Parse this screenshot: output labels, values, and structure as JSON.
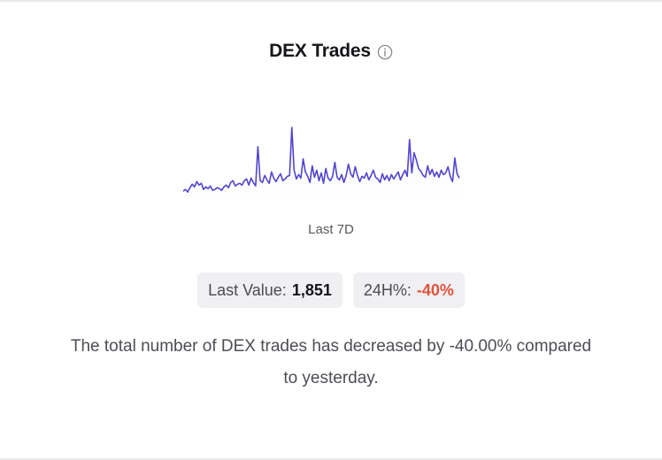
{
  "card": {
    "title": "DEX Trades",
    "info_icon": "info-circle-icon",
    "period_label": "Last 7D",
    "last_value_label": "Last Value:",
    "last_value": "1,851",
    "change_label": "24H%:",
    "change_value": "-40%",
    "description": "The total number of DEX trades has decreased by -40.00% compared to yesterday."
  },
  "colors": {
    "line": "#5145cd",
    "area_top": "#e6e3fb",
    "negative": "#e0533d"
  },
  "chart_data": {
    "type": "line",
    "title": "",
    "xlabel": "",
    "ylabel": "",
    "series": [
      {
        "values": [
          12,
          14,
          11,
          16,
          20,
          17,
          23,
          19,
          21,
          14,
          17,
          15,
          18,
          13,
          14,
          16,
          15,
          13,
          17,
          19,
          16,
          22,
          24,
          18,
          20,
          21,
          19,
          24,
          26,
          19,
          27,
          22,
          18,
          63,
          24,
          22,
          30,
          25,
          21,
          34,
          27,
          23,
          28,
          32,
          24,
          26,
          29,
          30,
          85,
          36,
          26,
          31,
          27,
          49,
          34,
          29,
          22,
          41,
          28,
          36,
          24,
          33,
          21,
          38,
          27,
          24,
          29,
          45,
          28,
          25,
          31,
          22,
          30,
          43,
          32,
          28,
          40,
          30,
          23,
          29,
          27,
          33,
          25,
          30,
          36,
          28,
          26,
          22,
          32,
          25,
          30,
          24,
          31,
          26,
          30,
          34,
          25,
          31,
          36,
          29,
          71,
          33,
          56,
          48,
          38,
          35,
          30,
          28,
          41,
          31,
          37,
          29,
          34,
          28,
          36,
          31,
          33,
          40,
          29,
          23,
          50,
          32,
          27
        ]
      }
    ]
  }
}
